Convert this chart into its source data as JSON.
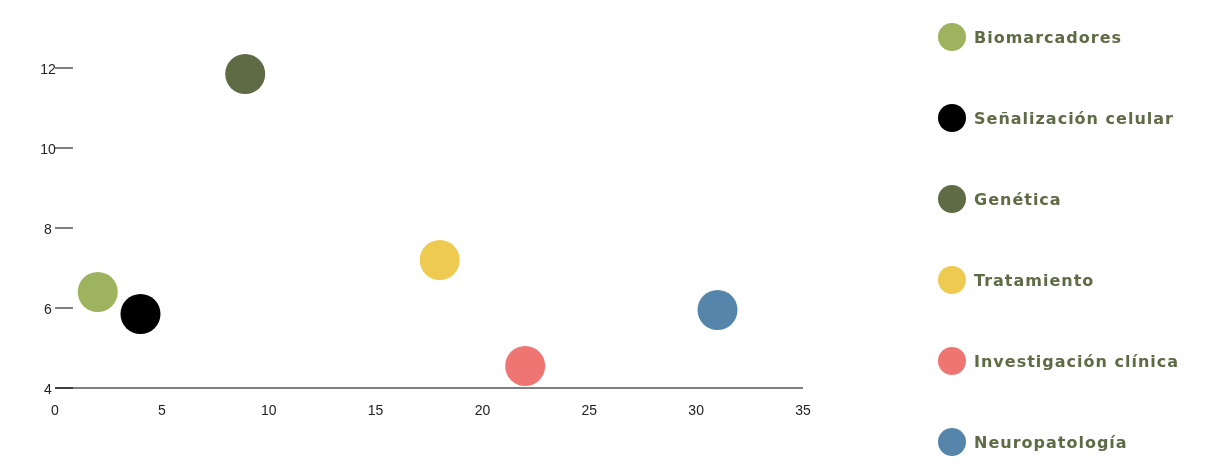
{
  "chart_data": {
    "type": "scatter",
    "marker": "circle",
    "legend": "right",
    "grid": false,
    "xlim": [
      0,
      35
    ],
    "xticks": [
      0,
      5,
      10,
      15,
      20,
      25,
      30,
      35
    ],
    "ylim": [
      4,
      12
    ],
    "yticks": [
      4,
      6,
      8,
      10,
      12
    ],
    "series": [
      {
        "name": "Biomarcadores",
        "color": "#9db35e",
        "x": [
          2
        ],
        "values": [
          6.4
        ]
      },
      {
        "name": "Señalización celular",
        "color": "#000000",
        "x": [
          4
        ],
        "values": [
          5.85
        ]
      },
      {
        "name": "Genética",
        "color": "#5e6b45",
        "x": [
          8.9
        ],
        "values": [
          11.85
        ]
      },
      {
        "name": "Tratamiento",
        "color": "#eecb50",
        "x": [
          18
        ],
        "values": [
          7.2
        ]
      },
      {
        "name": "Investigación clínica",
        "color": "#ef7573",
        "x": [
          22
        ],
        "values": [
          4.55
        ]
      },
      {
        "name": "Neuropatología",
        "color": "#5585aa",
        "x": [
          31
        ],
        "values": [
          5.95
        ]
      }
    ]
  }
}
